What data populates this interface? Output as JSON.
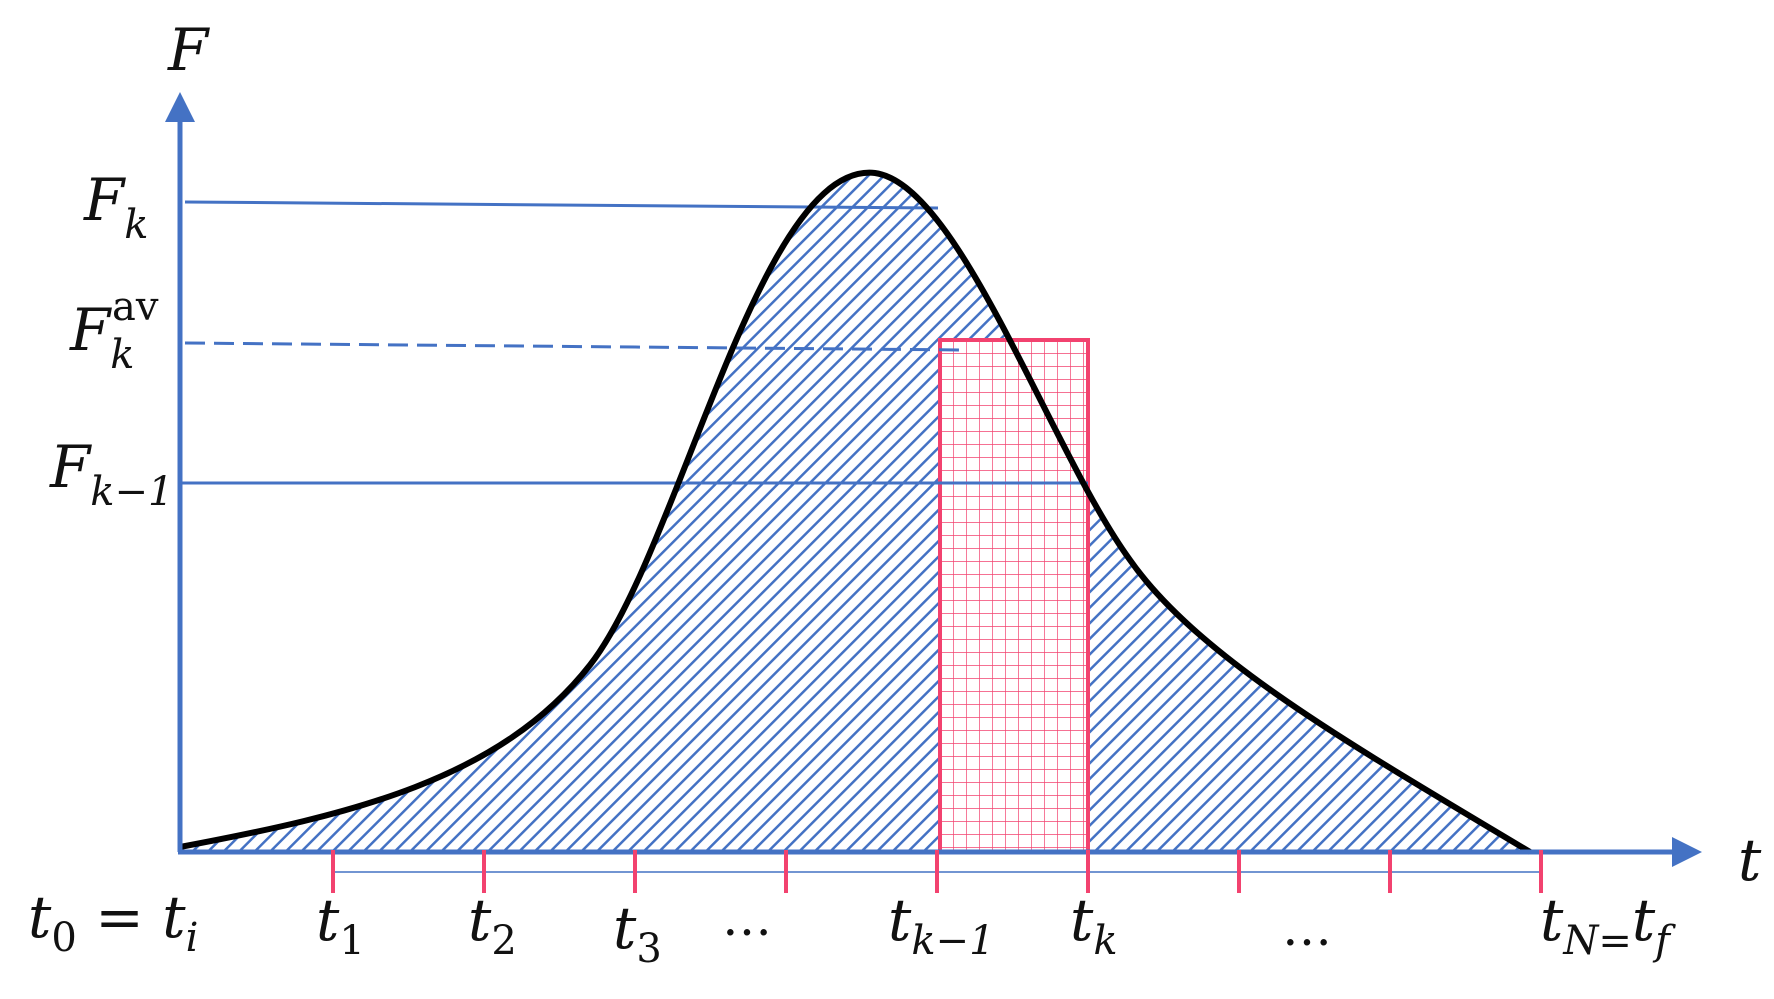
{
  "colors": {
    "axis": "#4472C4",
    "curve": "#000000",
    "hatch": "#4472C4",
    "rect": "#F2426F",
    "text": "#111111"
  },
  "labels": {
    "y_axis": "F",
    "x_axis": "t",
    "f_k": {
      "base": "F",
      "sub": "k"
    },
    "f_k_av": {
      "base": "F",
      "sub": "k",
      "sup": "av"
    },
    "f_k_minus_1": {
      "base": "F",
      "sub": "k−1"
    },
    "t0": {
      "base": "t",
      "sub": "0",
      "rest": " = ",
      "base2": "t",
      "sub2": "i"
    },
    "t1": {
      "base": "t",
      "sub": "1"
    },
    "t2": {
      "base": "t",
      "sub": "2"
    },
    "t3": {
      "base": "t",
      "sub": "3"
    },
    "dots_left": "…",
    "tk_minus_1": {
      "base": "t",
      "sub": "k−1"
    },
    "tk": {
      "base": "t",
      "sub": "k"
    },
    "dots_right": "…",
    "tN": {
      "base": "t",
      "sub": "N=",
      "base2": "t",
      "sub2": "f"
    }
  }
}
